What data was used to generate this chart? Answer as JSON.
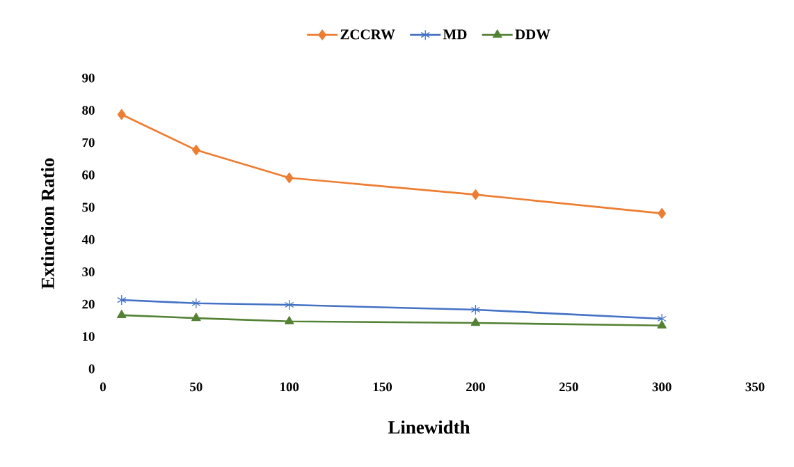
{
  "chart_data": {
    "type": "line",
    "xlabel": "Linewidth",
    "ylabel": "Extinction  Ratio",
    "xlim": [
      0,
      350
    ],
    "xticks": [
      0,
      50,
      100,
      150,
      200,
      250,
      300,
      350
    ],
    "ylim": [
      0,
      90
    ],
    "yticks": [
      0,
      10,
      20,
      30,
      40,
      50,
      60,
      70,
      80,
      90
    ],
    "grid": false,
    "legend": "top",
    "line_style": "solid",
    "series": [
      {
        "name": "ZCCRW",
        "color": "#ed7d31",
        "marker": "diamond",
        "x": [
          10,
          50,
          100,
          200,
          300
        ],
        "values": [
          78.7,
          67.7,
          59.1,
          53.9,
          48.1
        ]
      },
      {
        "name": "MD",
        "color": "#4472c4",
        "marker": "cross",
        "x": [
          10,
          50,
          100,
          200,
          300
        ],
        "values": [
          21.3,
          20.3,
          19.8,
          18.3,
          15.5
        ]
      },
      {
        "name": "DDW",
        "color": "#548235",
        "marker": "triangle",
        "x": [
          10,
          50,
          100,
          200,
          300
        ],
        "values": [
          16.6,
          15.7,
          14.7,
          14.2,
          13.4
        ]
      }
    ]
  }
}
